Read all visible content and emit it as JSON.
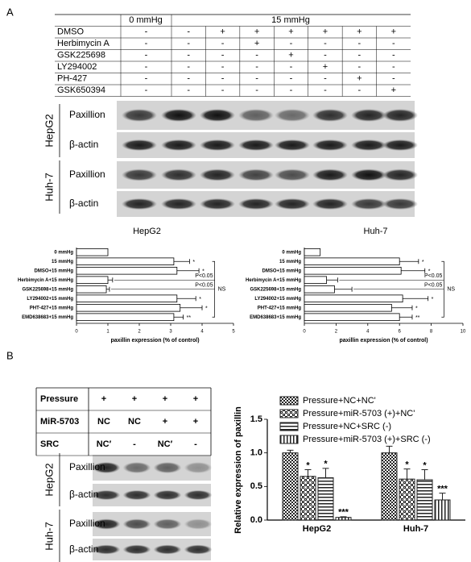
{
  "panel_a": {
    "label": "A",
    "table": {
      "header": [
        "0 mmHg",
        "15 mmHg"
      ],
      "rows": [
        [
          "DMSO",
          "-",
          "-",
          "+",
          "+",
          "+",
          "+",
          "+",
          "+"
        ],
        [
          "Herbimycin A",
          "-",
          "-",
          "-",
          "+",
          "-",
          "-",
          "-",
          "-"
        ],
        [
          "GSK225698",
          "-",
          "-",
          "-",
          "-",
          "+",
          "-",
          "-",
          "-"
        ],
        [
          "LY294002",
          "-",
          "-",
          "-",
          "-",
          "-",
          "+",
          "-",
          "-"
        ],
        [
          "PH-427",
          "-",
          "-",
          "-",
          "-",
          "-",
          "-",
          "+",
          "-"
        ],
        [
          "GSK650394",
          "-",
          "-",
          "-",
          "-",
          "-",
          "-",
          "-",
          "+"
        ]
      ]
    },
    "blots": {
      "cell_lines": [
        "HepG2",
        "Huh-7"
      ],
      "proteins": [
        "Paxillion",
        "β-actin"
      ]
    }
  },
  "panel_b": {
    "label": "B",
    "table": {
      "rows": [
        [
          "Pressure",
          "+",
          "+",
          "+",
          "+"
        ],
        [
          "MiR-5703",
          "NC",
          "NC",
          "+",
          "+"
        ],
        [
          "SRC",
          "NC′",
          "-",
          "NC′",
          "-"
        ]
      ]
    },
    "blots": {
      "cell_lines": [
        "HepG2",
        "Huh-7"
      ],
      "proteins": [
        "Paxillion",
        "β-actin"
      ]
    }
  },
  "chart_data": [
    {
      "type": "hbar",
      "title": "HepG2",
      "xlabel": "paxillin expression (% of control)",
      "categories": [
        "0 mmHg",
        "15 mmHg",
        "DMSO+15 mmHg",
        "Herbimycin A+15 mmHg",
        "GSK225698+15 mmHg",
        "LY294002+15 mmHg",
        "PHT-427+15 mmHg",
        "EMD638683+15 mmHg"
      ],
      "values": [
        1,
        3.1,
        3.2,
        1.0,
        0.95,
        3.2,
        3.3,
        3.1
      ],
      "errors": [
        null,
        0.5,
        0.7,
        0.15,
        0.1,
        0.6,
        0.7,
        0.3
      ],
      "significance": [
        null,
        "*",
        "*",
        null,
        null,
        "*",
        "*",
        "**"
      ],
      "annotations": [
        "P<0.05",
        "P<0.05",
        "NS"
      ],
      "color": "#ffffff",
      "xlim": [
        0,
        5
      ],
      "xticks": [
        0,
        1,
        2,
        3,
        4,
        5
      ]
    },
    {
      "type": "hbar",
      "title": "Huh-7",
      "xlabel": "paxillin expression (% of control)",
      "categories": [
        "0 mmHg",
        "15 mmHg",
        "DMSO+15 mmHg",
        "Herbimycin A+15 mmHg",
        "GSK225698+15 mmHg",
        "LY294002+15 mmHg",
        "PHT-427+15 mmHg",
        "EMD638683+15 mmHg"
      ],
      "values": [
        1,
        6,
        6.1,
        1.4,
        1.9,
        6.2,
        5.5,
        6
      ],
      "errors": [
        null,
        1.2,
        1.5,
        0.7,
        1.1,
        1.6,
        1.3,
        0.8
      ],
      "significance": [
        null,
        "*",
        "*",
        null,
        null,
        "*",
        "*",
        "**"
      ],
      "annotations": [
        "P<0.05",
        "P<0.05",
        "NS"
      ],
      "color": "#ffffff",
      "xlim": [
        0,
        10
      ],
      "xticks": [
        0,
        2,
        4,
        6,
        8,
        10
      ]
    },
    {
      "type": "grouped_bar",
      "ylabel": "Relative expression of paxillin",
      "categories": [
        "HepG2",
        "Huh-7"
      ],
      "series": [
        {
          "name": "Pressure+NC+NC'",
          "color": "#222222",
          "pattern": "checker",
          "values": [
            1.0,
            1.0
          ],
          "errors": [
            0.04,
            0.1
          ],
          "significance": [
            null,
            null
          ]
        },
        {
          "name": "Pressure+miR-5703 (+)+NC'",
          "color": "#222222",
          "pattern": "crosshatch",
          "values": [
            0.65,
            0.61
          ],
          "errors": [
            0.1,
            0.15
          ],
          "significance": [
            "*",
            "*"
          ]
        },
        {
          "name": "Pressure+NC+SRC (-)",
          "color": "#222222",
          "pattern": "horizontal",
          "values": [
            0.63,
            0.6
          ],
          "errors": [
            0.14,
            0.15
          ],
          "significance": [
            "*",
            "*"
          ]
        },
        {
          "name": "Pressure+miR-5703 (+)+SRC (-)",
          "color": "#222222",
          "pattern": "vertical",
          "values": [
            0.04,
            0.3
          ],
          "errors": [
            0.01,
            0.1
          ],
          "significance": [
            "***",
            "***"
          ]
        }
      ],
      "ylim": [
        0,
        1.5
      ],
      "yticks": [
        {
          "value": 0,
          "label": "0.0"
        },
        0.5,
        {
          "value": 1,
          "label": "1.0"
        },
        1.5
      ]
    }
  ]
}
